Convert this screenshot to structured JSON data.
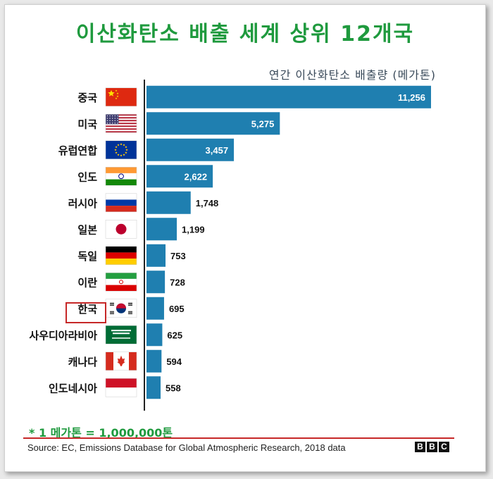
{
  "title": "이산화탄소 배출 세계 상위 12개국",
  "subtitle": "연간 이산화탄소 배출량 (메가톤)",
  "footnote": "* 1 메가톤 = 1,000,000톤",
  "source": "Source: EC, Emissions Database for Global Atmospheric Research, 2018 data",
  "brand": [
    "B",
    "B",
    "C"
  ],
  "colors": {
    "bar": "#1f7fb0",
    "title": "#1f9a3e",
    "highlight": "#c62828"
  },
  "chart_data": {
    "type": "bar",
    "orientation": "horizontal",
    "title": "이산화탄소 배출 세계 상위 12개국",
    "subtitle": "연간 이산화탄소 배출량 (메가톤)",
    "categories": [
      "중국",
      "미국",
      "유럽연합",
      "인도",
      "러시아",
      "일본",
      "독일",
      "이란",
      "한국",
      "사우디아라비아",
      "캐나다",
      "인도네시아"
    ],
    "flags": [
      "china-flag",
      "usa-flag",
      "eu-flag",
      "india-flag",
      "russia-flag",
      "japan-flag",
      "germany-flag",
      "iran-flag",
      "korea-flag",
      "saudi-flag",
      "canada-flag",
      "indonesia-flag"
    ],
    "values": [
      11256,
      5275,
      3457,
      2622,
      1748,
      1199,
      753,
      728,
      695,
      625,
      594,
      558
    ],
    "value_labels": [
      "11,256",
      "5,275",
      "3,457",
      "2,622",
      "1,748",
      "1,199",
      "753",
      "728",
      "695",
      "625",
      "594",
      "558"
    ],
    "highlighted_category": "한국",
    "xlim": [
      0,
      11256
    ],
    "grid": false,
    "legend": "none"
  }
}
